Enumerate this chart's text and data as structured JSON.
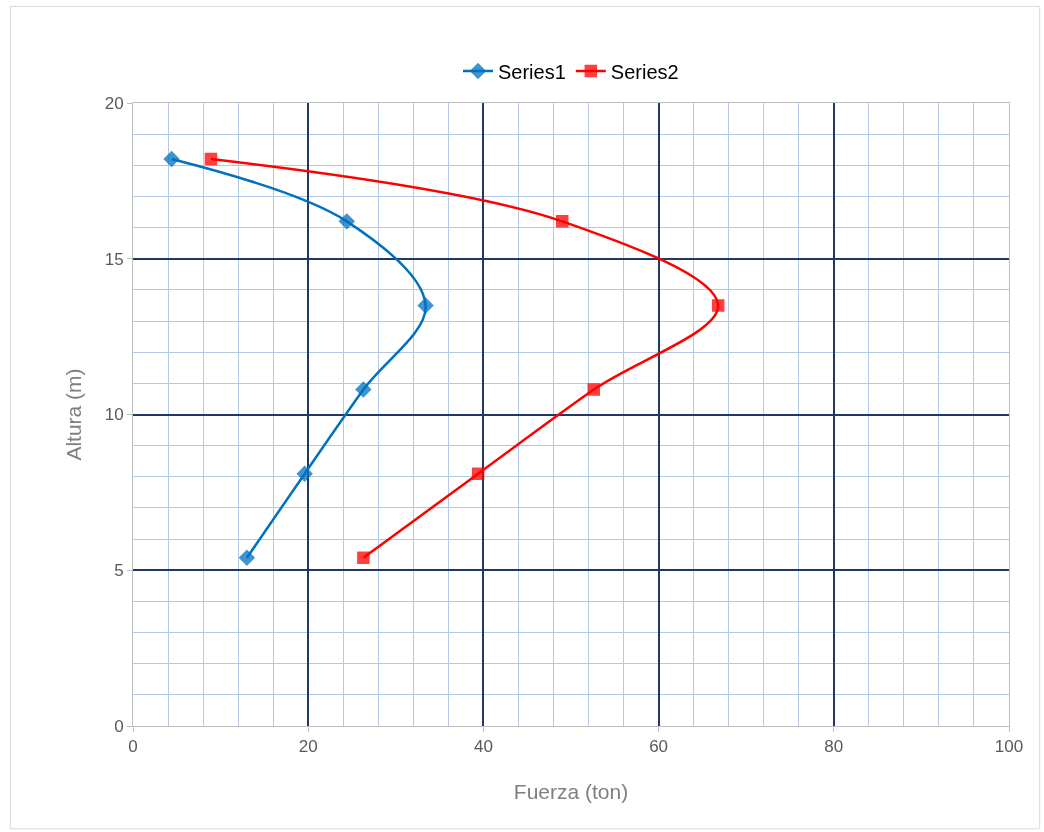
{
  "chart_data": {
    "type": "line",
    "xlabel": "Fuerza (ton)",
    "ylabel": "Altura (m)",
    "series": [
      {
        "name": "Series1",
        "color": "#0070c0",
        "marker": "diamond",
        "x": [
          4.4,
          24.4,
          33.4,
          26.3,
          19.6,
          13.0
        ],
        "values": [
          18.2,
          16.2,
          13.5,
          10.8,
          8.1,
          5.4
        ]
      },
      {
        "name": "Series2",
        "color": "#ff0000",
        "marker": "square",
        "x": [
          8.9,
          49.0,
          66.8,
          52.6,
          39.4,
          26.3
        ],
        "values": [
          18.2,
          16.2,
          13.5,
          10.8,
          8.1,
          5.4
        ]
      }
    ],
    "xlim": [
      0,
      100
    ],
    "ylim": [
      0,
      20
    ],
    "xticks": [
      0,
      {
        "value": 4,
        "label": null
      },
      {
        "value": 8,
        "label": null
      },
      {
        "value": 12,
        "label": null
      },
      {
        "value": 16,
        "label": null
      },
      20,
      {
        "value": 24,
        "label": null
      },
      {
        "value": 28,
        "label": null
      },
      {
        "value": 32,
        "label": null
      },
      {
        "value": 36,
        "label": null
      },
      40,
      {
        "value": 44,
        "label": null
      },
      {
        "value": 48,
        "label": null
      },
      {
        "value": 52,
        "label": null
      },
      {
        "value": 56,
        "label": null
      },
      60,
      {
        "value": 64,
        "label": null
      },
      {
        "value": 68,
        "label": null
      },
      {
        "value": 72,
        "label": null
      },
      {
        "value": 76,
        "label": null
      },
      80,
      {
        "value": 84,
        "label": null
      },
      {
        "value": 88,
        "label": null
      },
      {
        "value": 92,
        "label": null
      },
      {
        "value": 96,
        "label": null
      },
      100
    ],
    "yticks": [
      0,
      {
        "value": 1,
        "label": null
      },
      {
        "value": 2,
        "label": null
      },
      {
        "value": 3,
        "label": null
      },
      {
        "value": 4,
        "label": null
      },
      5,
      {
        "value": 6,
        "label": null
      },
      {
        "value": 7,
        "label": null
      },
      {
        "value": 8,
        "label": null
      },
      {
        "value": 9,
        "label": null
      },
      10,
      {
        "value": 11,
        "label": null
      },
      {
        "value": 12,
        "label": null
      },
      {
        "value": 13,
        "label": null
      },
      {
        "value": 14,
        "label": null
      },
      15,
      {
        "value": 16,
        "label": null
      },
      {
        "value": 17,
        "label": null
      },
      {
        "value": 18,
        "label": null
      },
      {
        "value": 19,
        "label": null
      },
      20
    ],
    "grid": true,
    "legend": "top",
    "line_style": "solid"
  }
}
